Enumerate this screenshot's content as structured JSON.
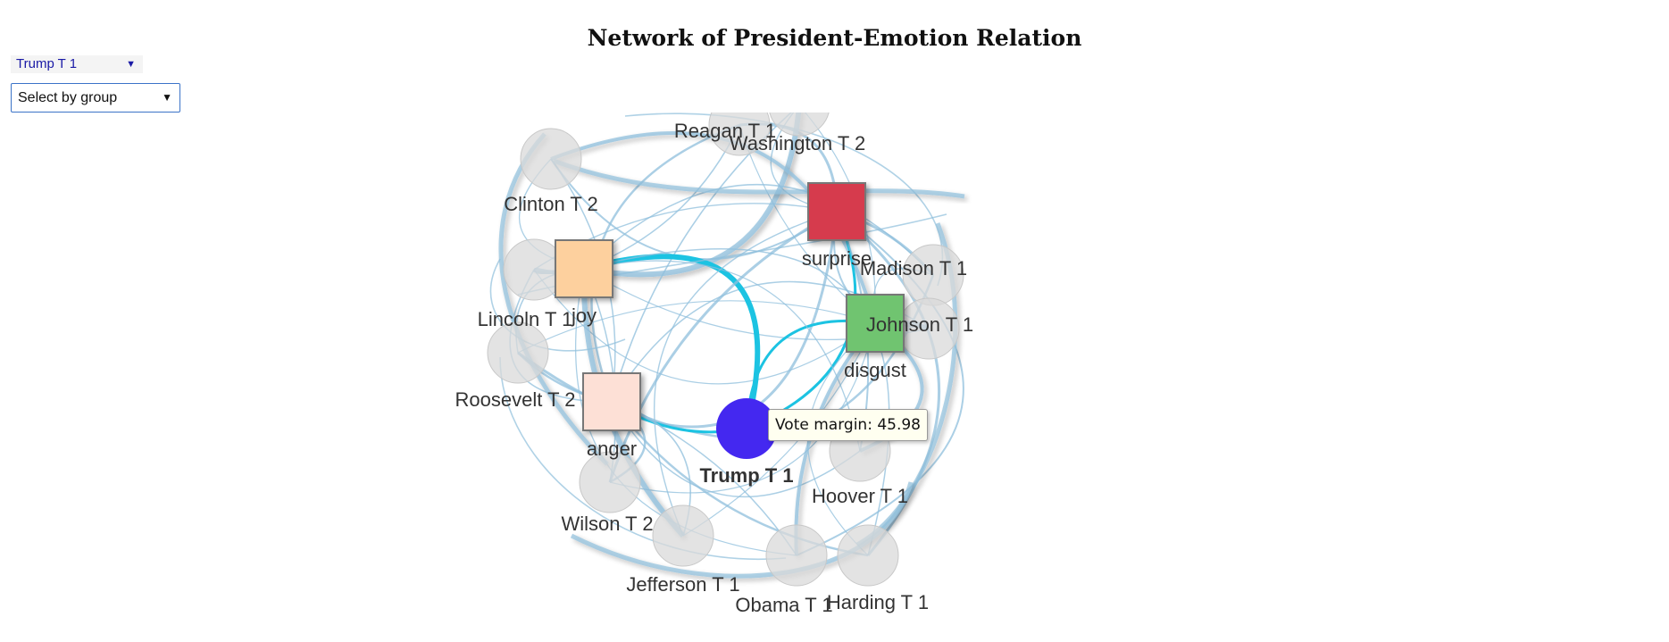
{
  "title": "Network of President-Emotion Relation",
  "controls": {
    "president_select": "Trump T 1",
    "group_select": "Select by group"
  },
  "tooltip": {
    "text": "Vote margin: 45.98"
  },
  "network": {
    "presidents": [
      {
        "name": "Reagan T 1",
        "selected": false
      },
      {
        "name": "Washington T 2",
        "selected": false
      },
      {
        "name": "Clinton T 2",
        "selected": false
      },
      {
        "name": "Madison T 1",
        "selected": false
      },
      {
        "name": "Lincoln T 1",
        "selected": false
      },
      {
        "name": "Johnson T 1",
        "selected": false
      },
      {
        "name": "Roosevelt T 2",
        "selected": false
      },
      {
        "name": "Trump T 1",
        "selected": true
      },
      {
        "name": "Hoover T 1",
        "selected": false
      },
      {
        "name": "Wilson T 2",
        "selected": false
      },
      {
        "name": "Jefferson T 1",
        "selected": false
      },
      {
        "name": "Obama T 1",
        "selected": false
      },
      {
        "name": "Harding T 1",
        "selected": false
      }
    ],
    "emotions": [
      {
        "name": "surprise",
        "color": "#d63a4e"
      },
      {
        "name": "joy",
        "color": "#fdd09e"
      },
      {
        "name": "disgust",
        "color": "#70c46f"
      },
      {
        "name": "anger",
        "color": "#fde0d6"
      }
    ],
    "colors": {
      "edge": "#8fbfdc",
      "highlight_edge": "#1cc3e2",
      "president_node": "#d9d9d9",
      "selected_node": "#4428f0"
    }
  }
}
